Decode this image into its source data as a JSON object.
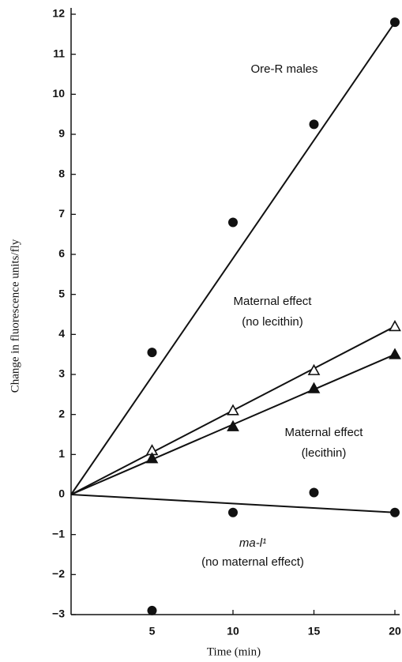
{
  "chart_data": {
    "type": "scatter",
    "xlabel": "Time (min)",
    "ylabel": "Change in fluorescence units/fly",
    "x": [
      5,
      10,
      15,
      20
    ],
    "xlim": [
      0,
      20
    ],
    "xticks": [
      5,
      10,
      15,
      20
    ],
    "ylim": [
      -3,
      12
    ],
    "yticks": [
      {
        "value": -3,
        "label": "−3"
      },
      {
        "value": -2,
        "label": "−2"
      },
      {
        "value": -1,
        "label": "−1"
      },
      0,
      1,
      2,
      3,
      4,
      5,
      6,
      7,
      8,
      9,
      10,
      11,
      12
    ],
    "series": [
      {
        "name": "Ore-R males",
        "marker": "circle",
        "color": "#111111",
        "values": [
          3.55,
          6.8,
          9.25,
          11.8
        ],
        "fit_x": [
          0,
          20
        ],
        "fit_values": [
          0,
          11.8
        ]
      },
      {
        "name": "Maternal effect",
        "note": "(no lecithin)",
        "marker": "triangle-open",
        "color": "#111111",
        "values": [
          1.1,
          2.1,
          3.1,
          4.2
        ],
        "fit_x": [
          0,
          20
        ],
        "fit_values": [
          0,
          4.2
        ]
      },
      {
        "name": "Maternal effect",
        "note": "(lecithin)",
        "marker": "triangle",
        "color": "#111111",
        "values": [
          0.9,
          1.7,
          2.65,
          3.5
        ],
        "fit_x": [
          0,
          20
        ],
        "fit_values": [
          0,
          3.5
        ]
      },
      {
        "name": "ma-l¹",
        "note": "(no maternal effect)",
        "marker": "circle",
        "color": "#111111",
        "values": [
          -2.9,
          -0.45,
          0.05,
          -0.45
        ],
        "fit_x": [
          0,
          20
        ],
        "fit_values": [
          0,
          -0.45
        ]
      }
    ]
  }
}
